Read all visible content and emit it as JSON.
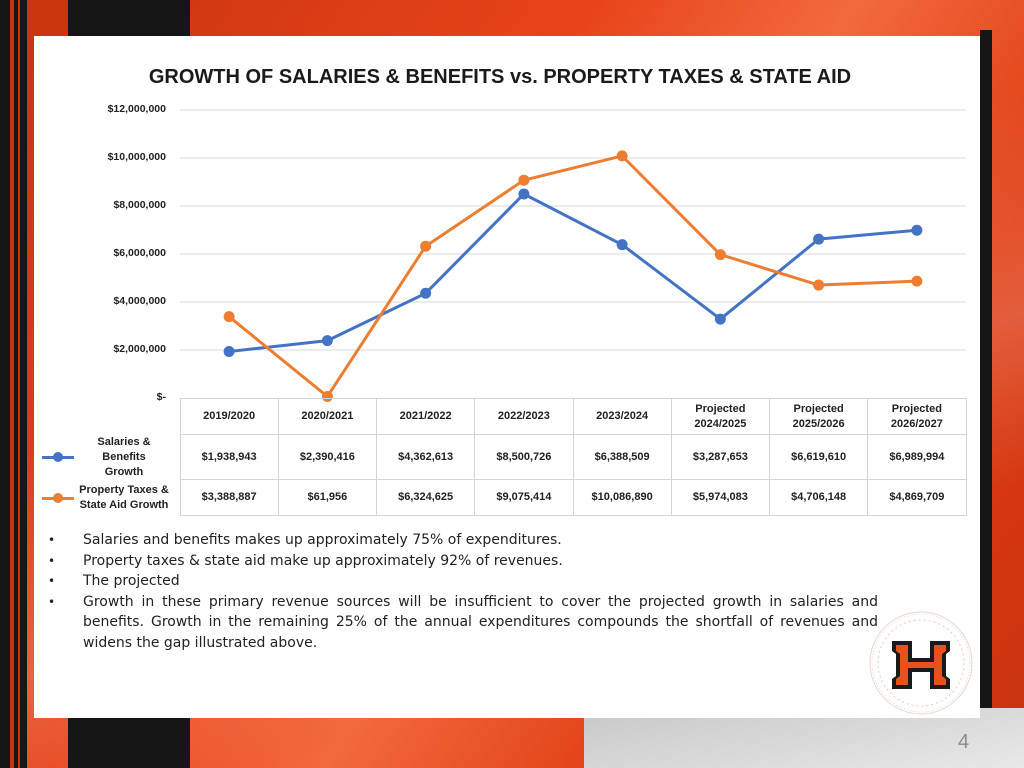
{
  "chart_data": {
    "type": "line",
    "title": "GROWTH OF SALARIES & BENEFITS vs. PROPERTY TAXES & STATE AID",
    "categories": [
      "2019/2020",
      "2020/2021",
      "2021/2022",
      "2022/2023",
      "2023/2024",
      "Projected 2024/2025",
      "Projected 2025/2026",
      "Projected 2026/2027"
    ],
    "category_lines": [
      [
        "2019/2020"
      ],
      [
        "2020/2021"
      ],
      [
        "2021/2022"
      ],
      [
        "2022/2023"
      ],
      [
        "2023/2024"
      ],
      [
        "Projected",
        "2024/2025"
      ],
      [
        "Projected",
        "2025/2026"
      ],
      [
        "Projected",
        "2026/2027"
      ]
    ],
    "ylim": [
      0,
      12000000
    ],
    "y_ticks": [
      0,
      2000000,
      4000000,
      6000000,
      8000000,
      10000000,
      12000000
    ],
    "y_tick_labels": [
      "$-",
      "$2,000,000",
      "$4,000,000",
      "$6,000,000",
      "$8,000,000",
      "$10,000,000",
      "$12,000,000"
    ],
    "grid": true,
    "legend": "data-table",
    "series": [
      {
        "name": "Salaries & Benefits Growth",
        "name_lines": [
          "Salaries & Benefits",
          "Growth"
        ],
        "color": "#4472c4",
        "values": [
          1938943,
          2390416,
          4362613,
          8500726,
          6388509,
          3287653,
          6619610,
          6989994
        ],
        "labels": [
          "$1,938,943",
          "$2,390,416",
          "$4,362,613",
          "$8,500,726",
          "$6,388,509",
          "$3,287,653",
          "$6,619,610",
          "$6,989,994"
        ]
      },
      {
        "name": "Property Taxes & State Aid Growth",
        "name_lines": [
          "Property Taxes &",
          "State Aid Growth"
        ],
        "color": "#ed7d31",
        "values": [
          3388887,
          61956,
          6324625,
          9075414,
          10086890,
          5974083,
          4706148,
          4869709
        ],
        "labels": [
          "$3,388,887",
          "$61,956",
          "$6,324,625",
          "$9,075,414",
          "$10,086,890",
          "$5,974,083",
          "$4,706,148",
          "$4,869,709"
        ]
      }
    ]
  },
  "notes": [
    "Salaries and benefits makes up approximately 75% of expenditures.",
    "Property taxes & state aid make up approximately 92% of revenues.",
    "The projected",
    "Growth in these primary revenue sources will be insufficient to cover the projected growth in salaries and benefits. Growth in the remaining 25% of the annual expenditures compounds the shortfall of revenues and widens the gap illustrated above."
  ],
  "logo": {
    "letter": "H",
    "colors": {
      "orange": "#e8501e",
      "black": "#1a1a1a"
    }
  },
  "page_number": "4",
  "colors": {
    "background_orange": "#e8431a",
    "frame_black": "#161616"
  }
}
